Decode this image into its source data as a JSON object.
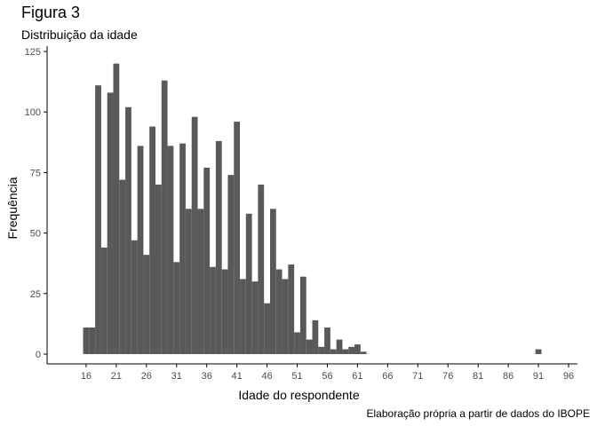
{
  "figure": {
    "title": "Figura 3",
    "subtitle": "Distribuição da idade",
    "caption": "Elaboração própria a partir de dados do IBOPE"
  },
  "colors": {
    "bar": "#595959",
    "axis": "#000000",
    "tick_label": "#4d4d4d"
  },
  "chart_data": {
    "type": "bar",
    "title": "Figura 3",
    "subtitle": "Distribuição da idade",
    "xlabel": "Idade do respondente",
    "ylabel": "Frequência",
    "xlim": [
      11,
      96
    ],
    "ylim": [
      0,
      125
    ],
    "x_ticks": [
      16,
      21,
      26,
      31,
      36,
      41,
      46,
      51,
      56,
      61,
      66,
      71,
      76,
      81,
      86,
      91,
      96
    ],
    "y_ticks": [
      0,
      25,
      50,
      75,
      100,
      125
    ],
    "grid": false,
    "bin_width": 1,
    "bins": [
      {
        "x": 16,
        "value": 11
      },
      {
        "x": 17,
        "value": 11
      },
      {
        "x": 18,
        "value": 111
      },
      {
        "x": 19,
        "value": 44
      },
      {
        "x": 20,
        "value": 108
      },
      {
        "x": 21,
        "value": 120
      },
      {
        "x": 22,
        "value": 72
      },
      {
        "x": 23,
        "value": 102
      },
      {
        "x": 24,
        "value": 47
      },
      {
        "x": 25,
        "value": 86
      },
      {
        "x": 26,
        "value": 41
      },
      {
        "x": 27,
        "value": 94
      },
      {
        "x": 28,
        "value": 70
      },
      {
        "x": 29,
        "value": 113
      },
      {
        "x": 30,
        "value": 86
      },
      {
        "x": 31,
        "value": 38
      },
      {
        "x": 32,
        "value": 87
      },
      {
        "x": 33,
        "value": 60
      },
      {
        "x": 34,
        "value": 98
      },
      {
        "x": 35,
        "value": 60
      },
      {
        "x": 36,
        "value": 77
      },
      {
        "x": 37,
        "value": 36
      },
      {
        "x": 38,
        "value": 88
      },
      {
        "x": 39,
        "value": 35
      },
      {
        "x": 40,
        "value": 74
      },
      {
        "x": 41,
        "value": 96
      },
      {
        "x": 42,
        "value": 31
      },
      {
        "x": 43,
        "value": 58
      },
      {
        "x": 44,
        "value": 30
      },
      {
        "x": 45,
        "value": 70
      },
      {
        "x": 46,
        "value": 21
      },
      {
        "x": 47,
        "value": 60
      },
      {
        "x": 48,
        "value": 35
      },
      {
        "x": 49,
        "value": 31
      },
      {
        "x": 50,
        "value": 37
      },
      {
        "x": 51,
        "value": 9
      },
      {
        "x": 52,
        "value": 32
      },
      {
        "x": 53,
        "value": 6
      },
      {
        "x": 54,
        "value": 14
      },
      {
        "x": 55,
        "value": 3
      },
      {
        "x": 56,
        "value": 11
      },
      {
        "x": 57,
        "value": 2
      },
      {
        "x": 58,
        "value": 6
      },
      {
        "x": 59,
        "value": 2
      },
      {
        "x": 60,
        "value": 3
      },
      {
        "x": 61,
        "value": 4
      },
      {
        "x": 62,
        "value": 1
      },
      {
        "x": 63,
        "value": 0
      },
      {
        "x": 64,
        "value": 0
      },
      {
        "x": 65,
        "value": 0
      },
      {
        "x": 66,
        "value": 0
      },
      {
        "x": 67,
        "value": 0
      },
      {
        "x": 68,
        "value": 0
      },
      {
        "x": 69,
        "value": 0
      },
      {
        "x": 70,
        "value": 0
      },
      {
        "x": 71,
        "value": 0
      },
      {
        "x": 72,
        "value": 0
      },
      {
        "x": 73,
        "value": 0
      },
      {
        "x": 74,
        "value": 0
      },
      {
        "x": 75,
        "value": 0
      },
      {
        "x": 76,
        "value": 0
      },
      {
        "x": 77,
        "value": 0
      },
      {
        "x": 78,
        "value": 0
      },
      {
        "x": 79,
        "value": 0
      },
      {
        "x": 80,
        "value": 0
      },
      {
        "x": 81,
        "value": 0
      },
      {
        "x": 82,
        "value": 0
      },
      {
        "x": 83,
        "value": 0
      },
      {
        "x": 84,
        "value": 0
      },
      {
        "x": 85,
        "value": 0
      },
      {
        "x": 86,
        "value": 0
      },
      {
        "x": 87,
        "value": 0
      },
      {
        "x": 88,
        "value": 0
      },
      {
        "x": 89,
        "value": 0
      },
      {
        "x": 90,
        "value": 0
      },
      {
        "x": 91,
        "value": 2
      }
    ]
  }
}
